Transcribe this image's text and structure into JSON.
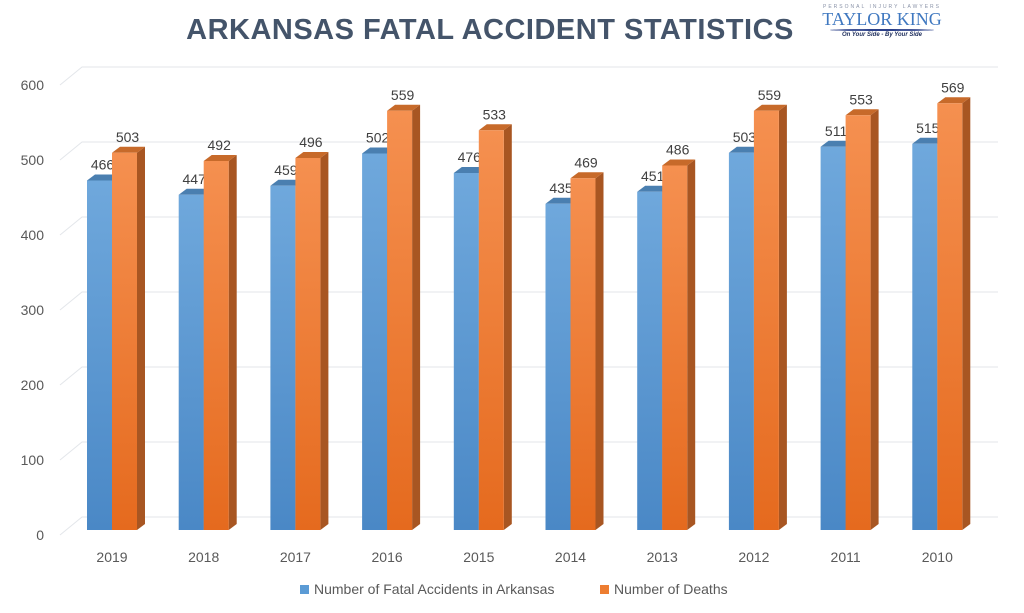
{
  "chart_data": {
    "type": "bar",
    "title": "ARKANSAS FATAL ACCIDENT STATISTICS",
    "categories": [
      "2019",
      "2018",
      "2017",
      "2016",
      "2015",
      "2014",
      "2013",
      "2012",
      "2011",
      "2010"
    ],
    "series": [
      {
        "name": "Number of Fatal Accidents in Arkansas",
        "color": "#5b9bd5",
        "values": [
          466,
          447,
          459,
          502,
          476,
          435,
          451,
          503,
          511,
          515
        ]
      },
      {
        "name": "Number of Deaths",
        "color": "#ed7d31",
        "values": [
          503,
          492,
          496,
          559,
          533,
          469,
          486,
          559,
          553,
          569
        ]
      }
    ],
    "ylim": [
      0,
      600
    ],
    "yticks": [
      0,
      100,
      200,
      300,
      400,
      500,
      600
    ],
    "grid": true,
    "legend": "bottom"
  },
  "logo": {
    "small": "PERSONAL INJURY LAWYERS",
    "name": "TAYLOR KING",
    "tag": "On Your Side - By Your Side"
  }
}
